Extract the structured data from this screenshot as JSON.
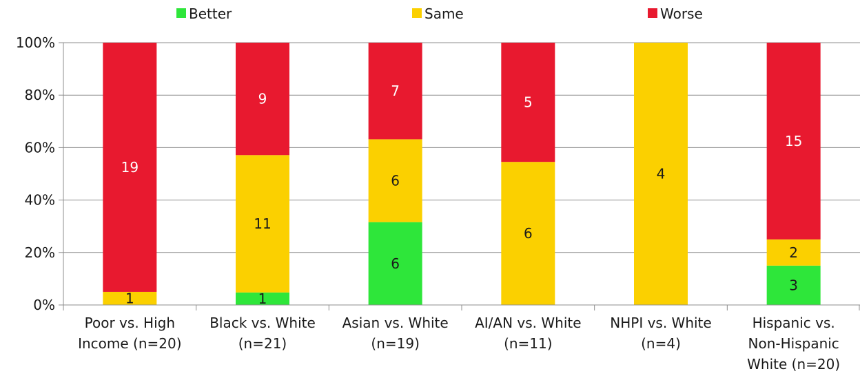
{
  "chart_data": {
    "type": "bar",
    "stacked": true,
    "percent_stacked": true,
    "categories": [
      [
        "Poor vs. High",
        "Income (n=20)"
      ],
      [
        "Black vs. White",
        "(n=21)"
      ],
      [
        "Asian vs. White",
        "(n=19)"
      ],
      [
        "AI/AN vs. White",
        "(n=11)"
      ],
      [
        "NHPI vs. White",
        "(n=4)"
      ],
      [
        "Hispanic vs.",
        "Non-Hispanic",
        "White (n=20)"
      ]
    ],
    "series": [
      {
        "name": "Better",
        "color": "#2ee63a",
        "label_color": "#1a1a1a",
        "values": [
          0,
          1,
          6,
          0,
          0,
          3
        ]
      },
      {
        "name": "Same",
        "color": "#fbd000",
        "label_color": "#1a1a1a",
        "values": [
          1,
          11,
          6,
          6,
          4,
          2
        ]
      },
      {
        "name": "Worse",
        "color": "#e8192f",
        "label_color": "#ffffff",
        "values": [
          19,
          9,
          7,
          5,
          0,
          15
        ]
      }
    ],
    "y_ticks": [
      "0%",
      "20%",
      "40%",
      "60%",
      "80%",
      "100%"
    ],
    "ylim": [
      0,
      100
    ],
    "grid": true,
    "legend_position": "top"
  }
}
